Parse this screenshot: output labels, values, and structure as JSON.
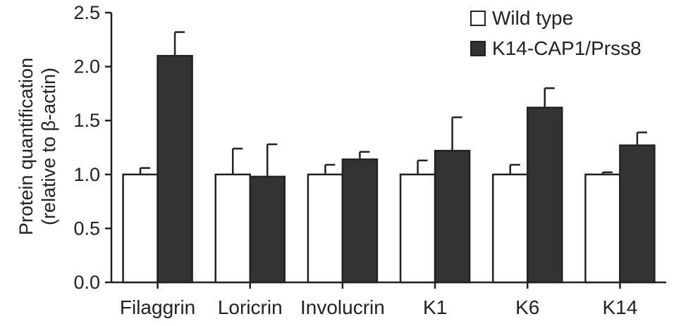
{
  "chart_data": {
    "type": "bar",
    "title": "",
    "ylabel_lines": [
      "Protein quantification",
      "(relative to β-actin)"
    ],
    "xlabel": "",
    "ylim": [
      0,
      2.5
    ],
    "yticks": [
      "0.0",
      "0.5",
      "1.0",
      "1.5",
      "2.0",
      "2.5"
    ],
    "categories": [
      "Filaggrin",
      "Loricrin",
      "Involucrin",
      "K1",
      "K6",
      "K14"
    ],
    "series": [
      {
        "name": "Wild type",
        "color": "#ffffff",
        "values": [
          1.0,
          1.0,
          1.0,
          1.0,
          1.0,
          1.0
        ],
        "errors": [
          0.06,
          0.24,
          0.09,
          0.13,
          0.09,
          0.02
        ]
      },
      {
        "name": "K14-CAP1/Prss8",
        "color": "#333333",
        "values": [
          2.1,
          0.98,
          1.14,
          1.22,
          1.62,
          1.27
        ],
        "errors": [
          0.22,
          0.3,
          0.07,
          0.31,
          0.18,
          0.12
        ]
      }
    ],
    "legend_position": "top-right",
    "grid": false
  }
}
